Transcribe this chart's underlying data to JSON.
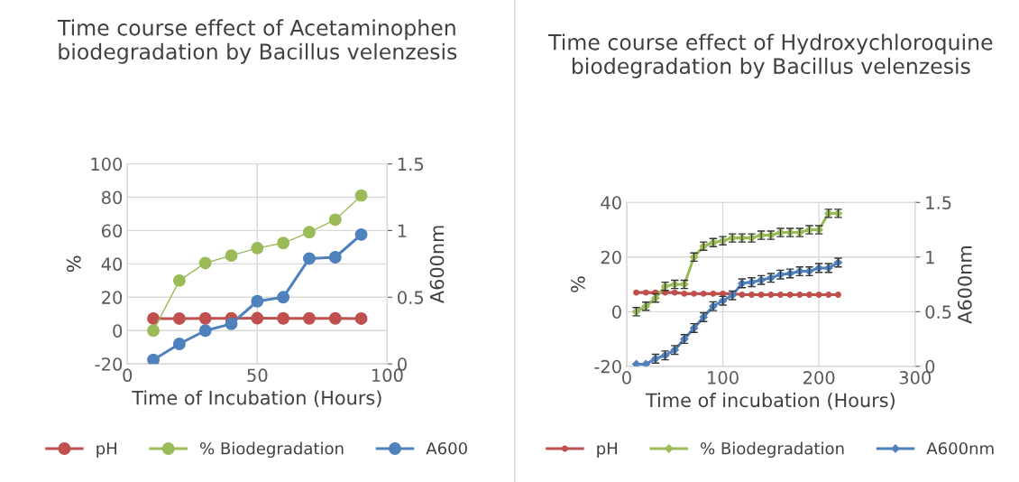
{
  "chart_data": [
    {
      "type": "line",
      "title": "Time course effect of Acetaminophen biodegradation by Bacillus velenzesis",
      "xlabel": "Time of Incubation (Hours)",
      "ylabel": "%",
      "y2label": "A600nm",
      "x": [
        10,
        20,
        30,
        40,
        50,
        60,
        70,
        80,
        90
      ],
      "series": [
        {
          "name": "pH",
          "color": "#c0504d",
          "marker": "circle",
          "values": [
            7.2,
            7.2,
            7.3,
            7.3,
            7.4,
            7.3,
            7.3,
            7.3,
            7.2
          ]
        },
        {
          "name": "% Biodegradation",
          "color": "#9bbb59",
          "marker": "circle",
          "values": [
            0,
            30,
            40.5,
            45,
            49.5,
            52.5,
            59,
            66.5,
            81
          ]
        },
        {
          "name": "A600",
          "color": "#4f81bd",
          "marker": "circle",
          "axis": "y2",
          "values": [
            0.03,
            0.15,
            0.25,
            0.3,
            0.47,
            0.5,
            0.79,
            0.8,
            0.97
          ]
        }
      ],
      "xlim": [
        0,
        100
      ],
      "xticks": [
        0,
        50,
        100
      ],
      "ylim": [
        -20,
        100
      ],
      "yticks": [
        -20,
        0,
        20,
        40,
        60,
        80,
        100
      ],
      "y2lim": [
        0,
        1.5
      ],
      "y2ticks": [
        0,
        0.5,
        1,
        1.5
      ],
      "grid": true,
      "legend": "bottom"
    },
    {
      "type": "line",
      "title": "Time course effect of Hydroxychloroquine biodegradation by Bacillus velenzesis",
      "xlabel": "Time of incubation (Hours)",
      "ylabel": "%",
      "y2label": "A600nm",
      "x": [
        10,
        20,
        30,
        40,
        50,
        60,
        70,
        80,
        90,
        100,
        110,
        120,
        130,
        140,
        150,
        160,
        170,
        180,
        190,
        200,
        210,
        220
      ],
      "series": [
        {
          "name": "pH",
          "color": "#c0504d",
          "marker": "circle",
          "values": [
            7,
            7,
            7,
            7,
            7,
            6.6,
            6.6,
            6.6,
            6.6,
            6.6,
            6.6,
            6.2,
            6.2,
            6.2,
            6.2,
            6.2,
            6.2,
            6.2,
            6.2,
            6.2,
            6.2,
            6.2
          ]
        },
        {
          "name": "% Biodegradation",
          "color": "#9bbb59",
          "marker": "diamond",
          "values": [
            0,
            2,
            5,
            9.3,
            10,
            10,
            20,
            24,
            25.3,
            26,
            27,
            27,
            27,
            28,
            28,
            29,
            29,
            29,
            30,
            30,
            36,
            36
          ],
          "errors": [
            1.5,
            1.5,
            1.5,
            1.5,
            1.5,
            1.5,
            1.5,
            1.5,
            1.5,
            1.5,
            1.5,
            1.5,
            1.5,
            1.5,
            1.5,
            1.5,
            1.5,
            1.5,
            1.5,
            1.5,
            1.5,
            1.5
          ]
        },
        {
          "name": "A600nm",
          "color": "#4f81bd",
          "marker": "diamond",
          "axis": "y2",
          "values": [
            0.02,
            0.02,
            0.07,
            0.1,
            0.15,
            0.25,
            0.35,
            0.45,
            0.55,
            0.6,
            0.65,
            0.76,
            0.77,
            0.79,
            0.81,
            0.84,
            0.85,
            0.87,
            0.87,
            0.9,
            0.9,
            0.95
          ],
          "errors": [
            null,
            null,
            0.04,
            0.04,
            0.04,
            0.04,
            0.04,
            0.04,
            0.04,
            0.04,
            0.04,
            0.04,
            0.04,
            0.04,
            0.04,
            0.04,
            0.04,
            0.04,
            0.04,
            0.04,
            0.04,
            0.04
          ]
        }
      ],
      "xlim": [
        0,
        300
      ],
      "xticks": [
        0,
        100,
        200,
        300
      ],
      "ylim": [
        -20,
        40
      ],
      "yticks": [
        -20,
        0,
        20,
        40
      ],
      "y2lim": [
        0,
        1.5
      ],
      "y2ticks": [
        0,
        0.5,
        1,
        1.5
      ],
      "grid": true,
      "legend": "bottom"
    }
  ]
}
